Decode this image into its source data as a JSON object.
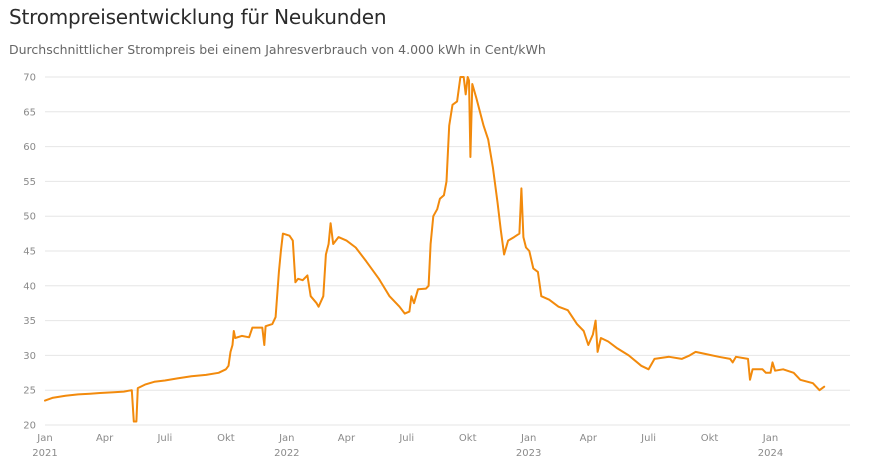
{
  "header": {
    "title": "Strompreisentwicklung für Neukunden",
    "subtitle": "Durchschnittlicher Strompreis bei einem Jahresverbrauch von 4.000 kWh in Cent/kWh"
  },
  "colors": {
    "line": "#f28a0c",
    "grid": "#e6e6e6",
    "tick": "#8a8a8a"
  },
  "chart_data": {
    "type": "line",
    "title": "Strompreisentwicklung für Neukunden",
    "subtitle": "Durchschnittlicher Strompreis bei einem Jahresverbrauch von 4.000 kWh in Cent/kWh",
    "ylim": [
      20,
      70
    ],
    "yticks": [
      20,
      25,
      30,
      35,
      40,
      45,
      50,
      55,
      60,
      65,
      70
    ],
    "xlim": [
      "2021-01-01",
      "2024-04-30"
    ],
    "grid": true,
    "xticks": [
      {
        "date": "2021-01-01",
        "label": "Jan",
        "year": "2021"
      },
      {
        "date": "2021-04-01",
        "label": "Apr",
        "year": ""
      },
      {
        "date": "2021-07-01",
        "label": "Juli",
        "year": ""
      },
      {
        "date": "2021-10-01",
        "label": "Okt",
        "year": ""
      },
      {
        "date": "2022-01-01",
        "label": "Jan",
        "year": "2022"
      },
      {
        "date": "2022-04-01",
        "label": "Apr",
        "year": ""
      },
      {
        "date": "2022-07-01",
        "label": "Juli",
        "year": ""
      },
      {
        "date": "2022-10-01",
        "label": "Okt",
        "year": ""
      },
      {
        "date": "2023-01-01",
        "label": "Jan",
        "year": "2023"
      },
      {
        "date": "2023-04-01",
        "label": "Apr",
        "year": ""
      },
      {
        "date": "2023-07-01",
        "label": "Juli",
        "year": ""
      },
      {
        "date": "2023-10-01",
        "label": "Okt",
        "year": ""
      },
      {
        "date": "2024-01-01",
        "label": "Jan",
        "year": "2024"
      }
    ],
    "series": [
      {
        "points": [
          [
            "2021-01-01",
            23.5
          ],
          [
            "2021-01-12",
            23.9
          ],
          [
            "2021-02-01",
            24.2
          ],
          [
            "2021-02-20",
            24.4
          ],
          [
            "2021-03-10",
            24.5
          ],
          [
            "2021-03-25",
            24.6
          ],
          [
            "2021-04-15",
            24.7
          ],
          [
            "2021-04-30",
            24.8
          ],
          [
            "2021-05-12",
            25.0
          ],
          [
            "2021-05-15",
            20.5
          ],
          [
            "2021-05-19",
            20.5
          ],
          [
            "2021-05-21",
            25.3
          ],
          [
            "2021-06-01",
            25.8
          ],
          [
            "2021-06-15",
            26.2
          ],
          [
            "2021-07-01",
            26.4
          ],
          [
            "2021-07-20",
            26.7
          ],
          [
            "2021-08-10",
            27.0
          ],
          [
            "2021-09-01",
            27.2
          ],
          [
            "2021-09-20",
            27.5
          ],
          [
            "2021-10-01",
            28.0
          ],
          [
            "2021-10-05",
            28.5
          ],
          [
            "2021-10-08",
            30.5
          ],
          [
            "2021-10-11",
            31.5
          ],
          [
            "2021-10-13",
            33.5
          ],
          [
            "2021-10-15",
            32.5
          ],
          [
            "2021-10-25",
            32.8
          ],
          [
            "2021-11-05",
            32.6
          ],
          [
            "2021-11-10",
            34.0
          ],
          [
            "2021-11-25",
            34.0
          ],
          [
            "2021-11-28",
            31.5
          ],
          [
            "2021-11-30",
            34.2
          ],
          [
            "2021-12-10",
            34.5
          ],
          [
            "2021-12-15",
            35.5
          ],
          [
            "2021-12-20",
            42.0
          ],
          [
            "2021-12-23",
            45.0
          ],
          [
            "2021-12-26",
            47.5
          ],
          [
            "2022-01-05",
            47.2
          ],
          [
            "2022-01-10",
            46.5
          ],
          [
            "2022-01-14",
            40.5
          ],
          [
            "2022-01-18",
            41.0
          ],
          [
            "2022-01-25",
            40.8
          ],
          [
            "2022-02-01",
            41.5
          ],
          [
            "2022-02-06",
            38.5
          ],
          [
            "2022-02-15",
            37.5
          ],
          [
            "2022-02-18",
            37.0
          ],
          [
            "2022-02-25",
            38.5
          ],
          [
            "2022-03-01",
            44.5
          ],
          [
            "2022-03-05",
            46.0
          ],
          [
            "2022-03-08",
            49.0
          ],
          [
            "2022-03-12",
            46.0
          ],
          [
            "2022-03-20",
            47.0
          ],
          [
            "2022-04-01",
            46.5
          ],
          [
            "2022-04-15",
            45.5
          ],
          [
            "2022-05-01",
            43.5
          ],
          [
            "2022-05-20",
            41.0
          ],
          [
            "2022-06-05",
            38.5
          ],
          [
            "2022-06-20",
            37.0
          ],
          [
            "2022-06-28",
            36.0
          ],
          [
            "2022-07-05",
            36.3
          ],
          [
            "2022-07-08",
            38.5
          ],
          [
            "2022-07-12",
            37.5
          ],
          [
            "2022-07-18",
            39.5
          ],
          [
            "2022-07-30",
            39.6
          ],
          [
            "2022-08-03",
            40.0
          ],
          [
            "2022-08-06",
            46.0
          ],
          [
            "2022-08-10",
            50.0
          ],
          [
            "2022-08-16",
            51.0
          ],
          [
            "2022-08-20",
            52.5
          ],
          [
            "2022-08-26",
            53.0
          ],
          [
            "2022-08-30",
            55.0
          ],
          [
            "2022-09-03",
            63.0
          ],
          [
            "2022-09-08",
            66.0
          ],
          [
            "2022-09-15",
            66.5
          ],
          [
            "2022-09-20",
            70.0
          ],
          [
            "2022-09-25",
            70.0
          ],
          [
            "2022-09-28",
            67.5
          ],
          [
            "2022-10-01",
            70.0
          ],
          [
            "2022-10-03",
            69.5
          ],
          [
            "2022-10-05",
            58.5
          ],
          [
            "2022-10-08",
            69.0
          ],
          [
            "2022-10-14",
            67.0
          ],
          [
            "2022-10-25",
            63.0
          ],
          [
            "2022-11-01",
            61.0
          ],
          [
            "2022-11-08",
            57.0
          ],
          [
            "2022-11-15",
            52.0
          ],
          [
            "2022-11-20",
            48.0
          ],
          [
            "2022-11-25",
            44.5
          ],
          [
            "2022-12-01",
            46.5
          ],
          [
            "2022-12-10",
            47.0
          ],
          [
            "2022-12-18",
            47.5
          ],
          [
            "2022-12-21",
            54.0
          ],
          [
            "2022-12-24",
            47.0
          ],
          [
            "2022-12-28",
            45.5
          ],
          [
            "2023-01-02",
            45.0
          ],
          [
            "2023-01-08",
            42.5
          ],
          [
            "2023-01-15",
            42.0
          ],
          [
            "2023-01-20",
            38.5
          ],
          [
            "2023-02-01",
            38.0
          ],
          [
            "2023-02-15",
            37.0
          ],
          [
            "2023-03-01",
            36.5
          ],
          [
            "2023-03-15",
            34.5
          ],
          [
            "2023-03-25",
            33.5
          ],
          [
            "2023-04-01",
            31.5
          ],
          [
            "2023-04-08",
            33.0
          ],
          [
            "2023-04-12",
            35.0
          ],
          [
            "2023-04-15",
            30.5
          ],
          [
            "2023-04-20",
            32.5
          ],
          [
            "2023-05-01",
            32.0
          ],
          [
            "2023-05-15",
            31.0
          ],
          [
            "2023-06-01",
            30.0
          ],
          [
            "2023-06-20",
            28.5
          ],
          [
            "2023-07-01",
            28.0
          ],
          [
            "2023-07-10",
            29.5
          ],
          [
            "2023-08-01",
            29.8
          ],
          [
            "2023-08-20",
            29.5
          ],
          [
            "2023-09-01",
            30.0
          ],
          [
            "2023-09-10",
            30.5
          ],
          [
            "2023-09-25",
            30.2
          ],
          [
            "2023-10-15",
            29.8
          ],
          [
            "2023-11-01",
            29.5
          ],
          [
            "2023-11-05",
            29.0
          ],
          [
            "2023-11-10",
            29.8
          ],
          [
            "2023-11-28",
            29.5
          ],
          [
            "2023-12-01",
            26.5
          ],
          [
            "2023-12-05",
            28.0
          ],
          [
            "2023-12-20",
            28.0
          ],
          [
            "2023-12-25",
            27.5
          ],
          [
            "2024-01-01",
            27.5
          ],
          [
            "2024-01-04",
            29.0
          ],
          [
            "2024-01-08",
            27.8
          ],
          [
            "2024-01-20",
            28.0
          ],
          [
            "2024-02-05",
            27.5
          ],
          [
            "2024-02-15",
            26.5
          ],
          [
            "2024-03-05",
            26.0
          ],
          [
            "2024-03-15",
            25.0
          ],
          [
            "2024-03-22",
            25.5
          ]
        ]
      }
    ]
  }
}
